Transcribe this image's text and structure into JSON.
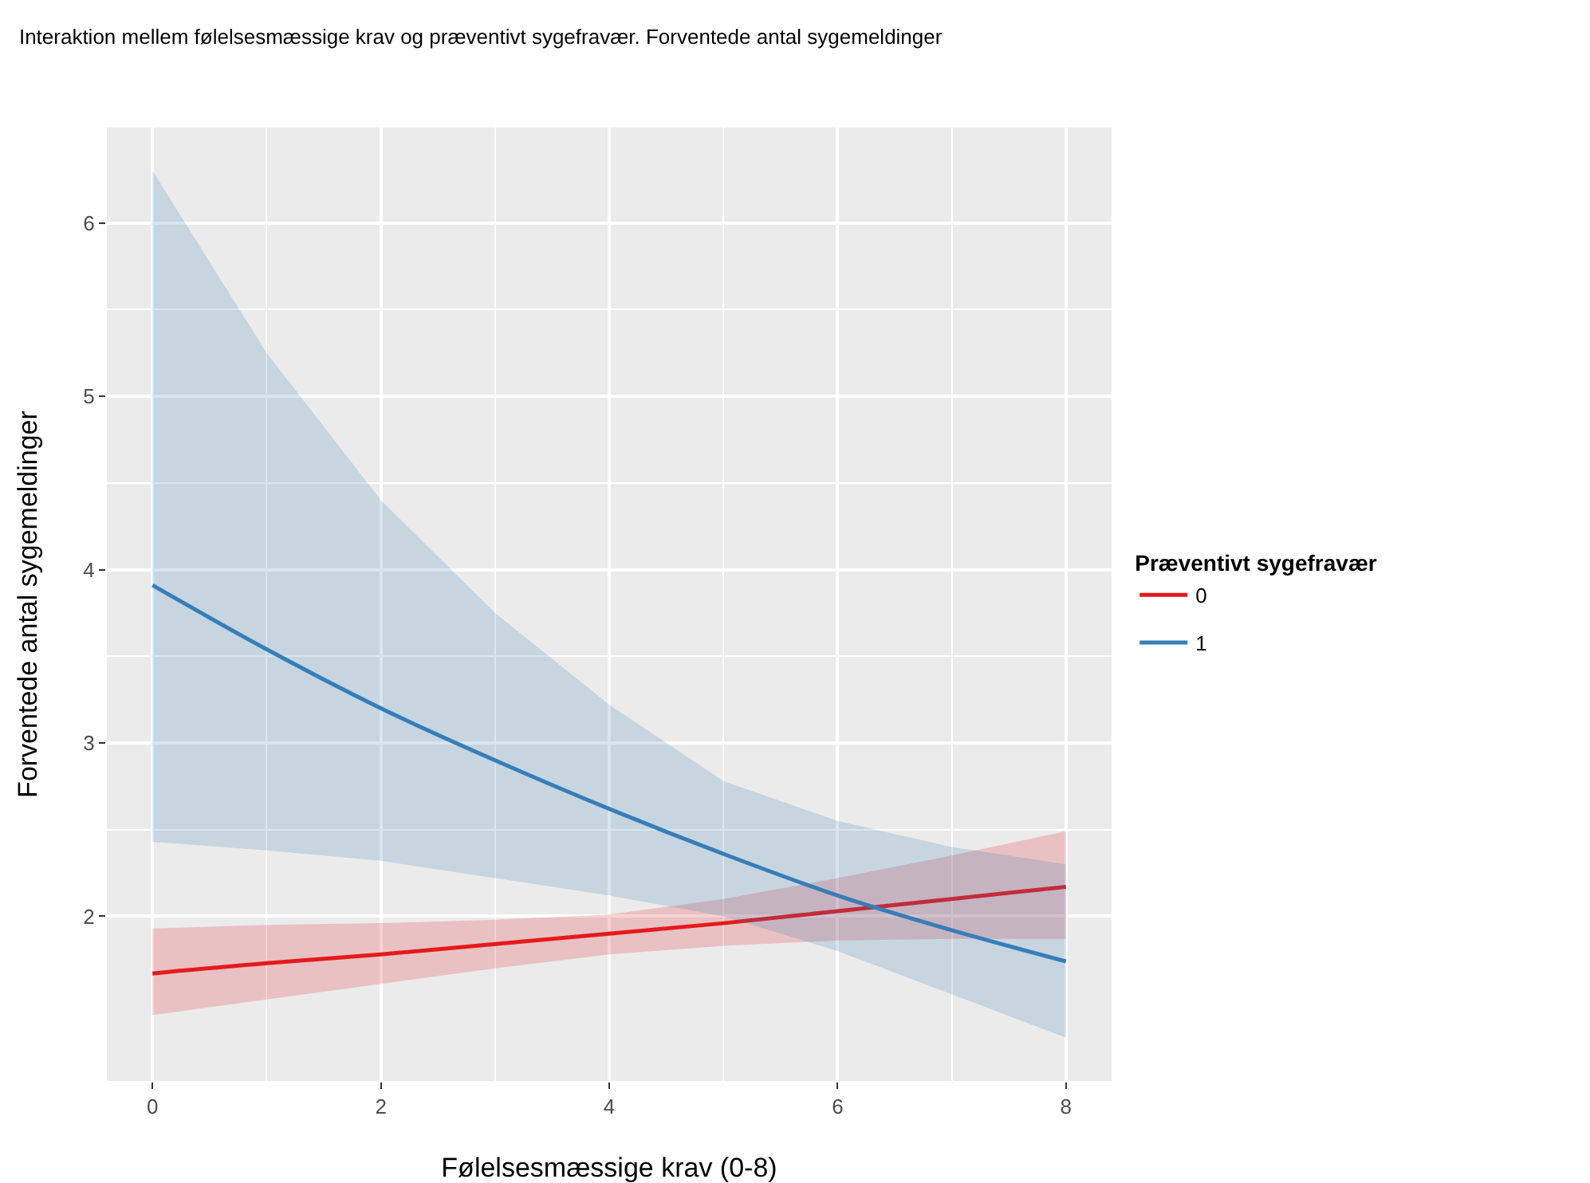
{
  "chart_data": {
    "type": "line",
    "title": "Interaktion mellem følelsesmæssige krav og præventivt sygefravær. Forventede antal sygemeldinger",
    "xlabel": "Følelsesmæssige krav (0-8)",
    "ylabel": "Forventede antal sygemeldinger",
    "legend_title": "Præventivt sygefravær",
    "x": [
      0,
      1,
      2,
      3,
      4,
      5,
      6,
      7,
      8
    ],
    "series": [
      {
        "name": "0",
        "color": "#e41a1c",
        "values": [
          1.67,
          1.73,
          1.78,
          1.84,
          1.9,
          1.96,
          2.03,
          2.1,
          2.17
        ],
        "lower": [
          1.43,
          1.52,
          1.61,
          1.7,
          1.78,
          1.83,
          1.86,
          1.87,
          1.87
        ],
        "upper": [
          1.93,
          1.95,
          1.96,
          1.98,
          2.01,
          2.1,
          2.22,
          2.35,
          2.49
        ]
      },
      {
        "name": "1",
        "color": "#377eb8",
        "values": [
          3.91,
          3.54,
          3.2,
          2.9,
          2.62,
          2.36,
          2.12,
          1.92,
          1.74
        ],
        "lower": [
          2.43,
          2.38,
          2.32,
          2.22,
          2.12,
          2.0,
          1.8,
          1.55,
          1.3
        ],
        "upper": [
          6.3,
          5.25,
          4.4,
          3.75,
          3.22,
          2.78,
          2.55,
          2.4,
          2.3
        ]
      }
    ],
    "xlim": [
      -0.4,
      8.4
    ],
    "ylim": [
      1.05,
      6.55
    ],
    "xticks": [
      0,
      2,
      4,
      6,
      8
    ],
    "yticks": [
      2,
      3,
      4,
      5,
      6
    ],
    "grid": true,
    "legend": "right",
    "line_style": "solid",
    "marker": "none"
  }
}
